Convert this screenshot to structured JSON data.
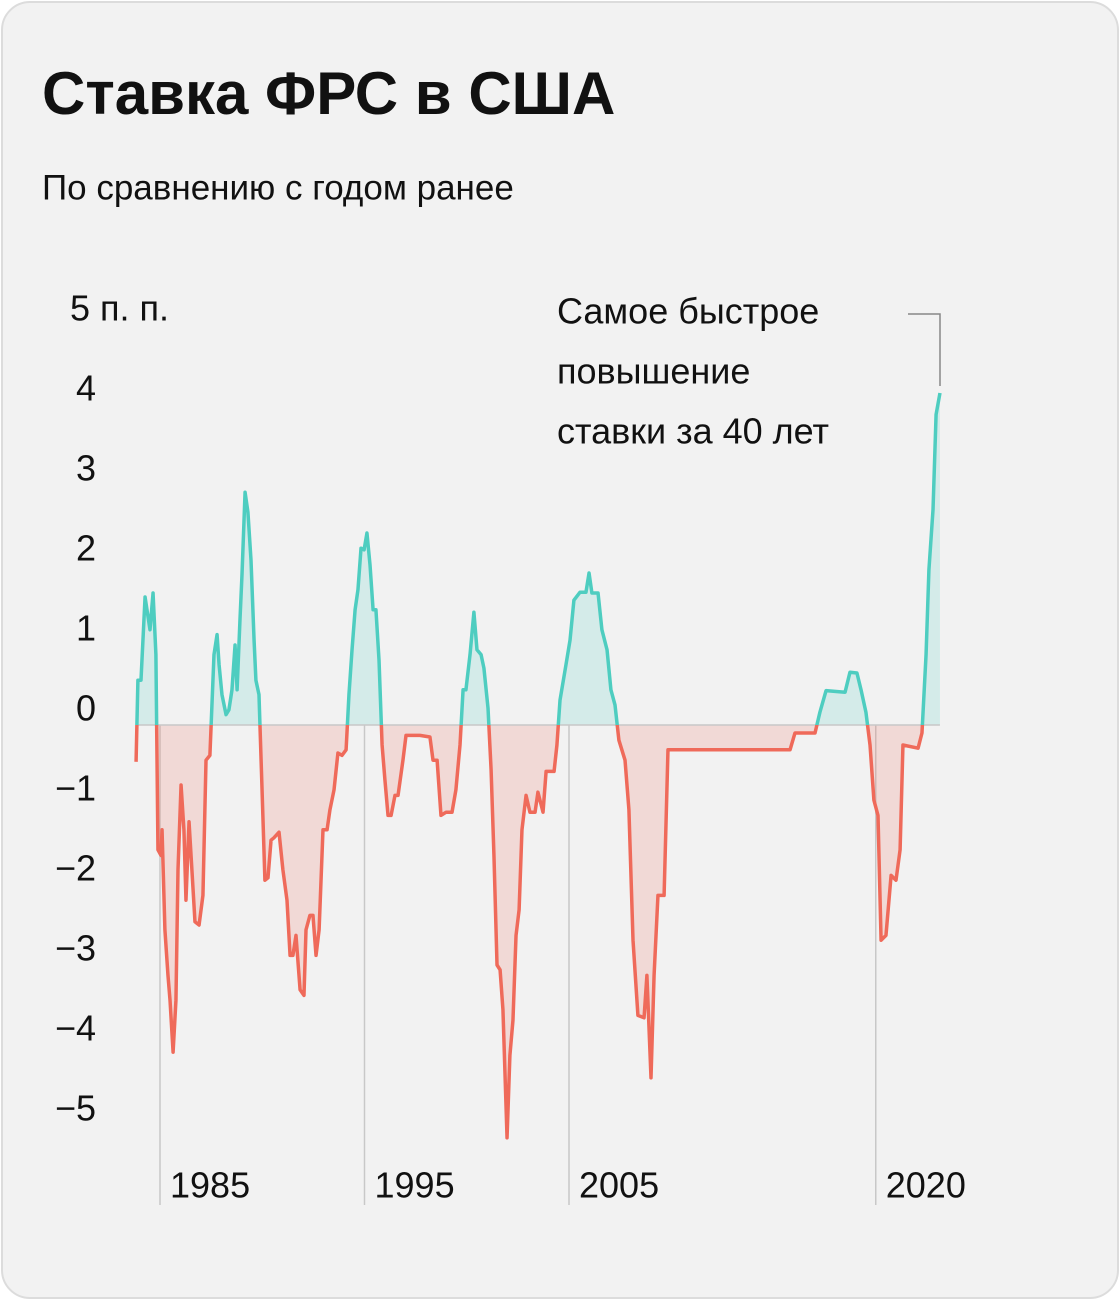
{
  "chart_data": {
    "type": "line",
    "title": "Ставка ФРС в США",
    "subtitle": "По сравнению с годом ранее",
    "annotation": [
      "Самое быстрое",
      "повышение",
      "ставки за 40 лет"
    ],
    "colors": {
      "positive": "#4ecdc0",
      "negative": "#ef6a5a"
    },
    "xlim": [
      1983.8,
      2023.2
    ],
    "xticks": [
      1985,
      1995,
      2005,
      2020
    ],
    "ylim": [
      -5.5,
      5.5
    ],
    "yticks": [
      {
        "value": 5,
        "label": "5 п. п."
      },
      4,
      3,
      2,
      1,
      0,
      {
        "value": -1,
        "label": "−1"
      },
      {
        "value": -2,
        "label": "−2"
      },
      {
        "value": -3,
        "label": "−3"
      },
      {
        "value": -4,
        "label": "−4"
      },
      {
        "value": -5,
        "label": "−5"
      }
    ],
    "x": [
      1983.83,
      1983.92,
      1984.07,
      1984.27,
      1984.51,
      1984.66,
      1984.8,
      1984.9,
      1985.05,
      1985.1,
      1985.24,
      1985.39,
      1985.49,
      1985.64,
      1985.78,
      1985.88,
      1986.03,
      1986.17,
      1986.27,
      1986.42,
      1986.56,
      1986.71,
      1986.91,
      1987.1,
      1987.25,
      1987.44,
      1987.64,
      1987.79,
      1987.89,
      1988.03,
      1988.23,
      1988.37,
      1988.52,
      1988.67,
      1988.77,
      1988.91,
      1989.01,
      1989.16,
      1989.3,
      1989.45,
      1989.6,
      1989.69,
      1989.84,
      1989.99,
      1990.13,
      1990.28,
      1990.43,
      1990.57,
      1990.82,
      1991.01,
      1991.21,
      1991.36,
      1991.5,
      1991.65,
      1991.85,
      1992.04,
      1992.14,
      1992.33,
      1992.48,
      1992.63,
      1992.78,
      1992.97,
      1993.17,
      1993.31,
      1993.51,
      1993.7,
      1993.9,
      1994.1,
      1994.24,
      1994.39,
      1994.54,
      1994.68,
      1994.83,
      1994.98,
      1995.12,
      1995.27,
      1995.42,
      1995.56,
      1995.71,
      1995.86,
      1996.0,
      1996.15,
      1996.3,
      1996.49,
      1996.64,
      1996.88,
      1997.03,
      1997.22,
      1997.71,
      1998.2,
      1998.35,
      1998.55,
      1998.74,
      1998.99,
      1999.28,
      1999.47,
      1999.67,
      1999.82,
      1999.96,
      2000.16,
      2000.35,
      2000.5,
      2000.7,
      2000.84,
      2001.04,
      2001.19,
      2001.33,
      2001.48,
      2001.63,
      2001.77,
      2001.97,
      2002.11,
      2002.26,
      2002.41,
      2002.56,
      2002.7,
      2002.9,
      2003.09,
      2003.34,
      2003.48,
      2003.73,
      2003.88,
      2004.27,
      2004.41,
      2004.56,
      2004.85,
      2005.05,
      2005.24,
      2005.54,
      2005.83,
      2005.98,
      2006.12,
      2006.42,
      2006.61,
      2006.86,
      2007.05,
      2007.25,
      2007.44,
      2007.74,
      2007.93,
      2008.13,
      2008.37,
      2008.67,
      2008.81,
      2009.01,
      2009.16,
      2009.35,
      2009.65,
      2009.84,
      2015.81,
      2016.05,
      2017.03,
      2017.27,
      2017.57,
      2018.5,
      2018.74,
      2019.08,
      2019.28,
      2019.52,
      2019.72,
      2019.91,
      2020.11,
      2020.26,
      2020.5,
      2020.75,
      2020.99,
      2021.19,
      2021.33,
      2022.07,
      2022.26,
      2022.46,
      2022.6,
      2022.8,
      2022.95,
      2023.14
    ],
    "values": [
      -0.46,
      0.56,
      0.56,
      1.6,
      1.19,
      1.65,
      0.88,
      -1.56,
      -1.63,
      -1.31,
      -2.56,
      -3.13,
      -3.44,
      -4.09,
      -3.44,
      -1.81,
      -0.75,
      -1.31,
      -2.19,
      -1.21,
      -1.81,
      -2.46,
      -2.5,
      -2.13,
      -0.44,
      -0.38,
      0.88,
      1.13,
      0.75,
      0.38,
      0.13,
      0.19,
      0.44,
      1.0,
      0.44,
      1.31,
      1.88,
      2.91,
      2.66,
      2.06,
      1.06,
      0.56,
      0.38,
      -0.81,
      -1.94,
      -1.91,
      -1.44,
      -1.41,
      -1.34,
      -1.81,
      -2.19,
      -2.88,
      -2.88,
      -2.63,
      -3.31,
      -3.38,
      -2.56,
      -2.38,
      -2.38,
      -2.88,
      -2.56,
      -1.31,
      -1.31,
      -1.06,
      -0.81,
      -0.35,
      -0.38,
      -0.31,
      0.38,
      0.94,
      1.44,
      1.69,
      2.21,
      2.19,
      2.4,
      2.0,
      1.44,
      1.44,
      0.81,
      -0.25,
      -0.69,
      -1.13,
      -1.13,
      -0.88,
      -0.88,
      -0.44,
      -0.13,
      -0.13,
      -0.13,
      -0.15,
      -0.44,
      -0.44,
      -1.13,
      -1.09,
      -1.09,
      -0.81,
      -0.25,
      0.44,
      0.44,
      0.88,
      1.41,
      0.94,
      0.88,
      0.71,
      0.21,
      -0.56,
      -1.63,
      -3.0,
      -3.06,
      -3.56,
      -5.16,
      -4.13,
      -3.69,
      -2.63,
      -2.31,
      -1.31,
      -0.88,
      -1.09,
      -1.09,
      -0.84,
      -1.09,
      -0.58,
      -0.58,
      -0.25,
      0.31,
      0.75,
      1.06,
      1.56,
      1.66,
      1.66,
      1.9,
      1.65,
      1.65,
      1.19,
      0.94,
      0.44,
      0.25,
      -0.19,
      -0.44,
      -1.06,
      -2.69,
      -3.63,
      -3.66,
      -3.13,
      -4.41,
      -3.13,
      -2.13,
      -2.13,
      -0.31,
      -0.31,
      -0.1,
      -0.1,
      0.16,
      0.43,
      0.41,
      0.66,
      0.65,
      0.44,
      0.16,
      -0.25,
      -0.94,
      -1.13,
      -2.69,
      -2.63,
      -1.88,
      -1.94,
      -1.56,
      -0.25,
      -0.29,
      -0.1,
      0.88,
      1.94,
      2.69,
      3.88,
      4.15
    ]
  }
}
